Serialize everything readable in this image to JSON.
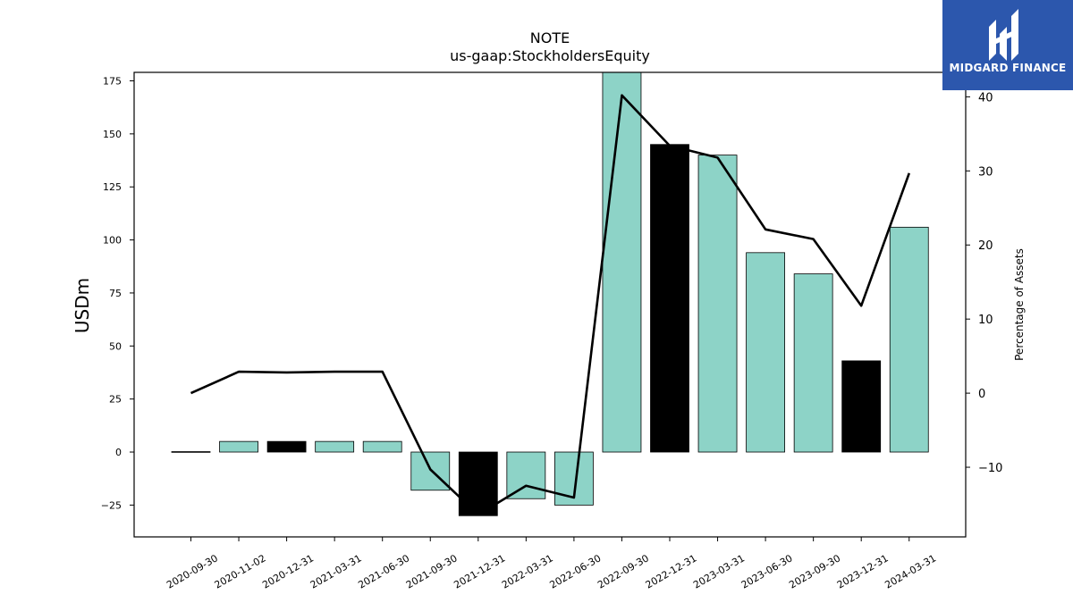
{
  "chart_data": {
    "type": "bar",
    "title": "NOTE",
    "subtitle": "us-gaap:StockholdersEquity",
    "ylabel": "USDm",
    "y2label": "Percentage of Assets",
    "ylim": [
      -40,
      179
    ],
    "y2lim": [
      -19.4,
      43.3
    ],
    "yticks": [
      -25,
      0,
      25,
      50,
      75,
      100,
      125,
      150,
      175
    ],
    "y2ticks": [
      -10,
      0,
      10,
      20,
      30,
      40
    ],
    "categories": [
      "2020-09-30",
      "2020-11-02",
      "2020-12-31",
      "2021-03-31",
      "2021-06-30",
      "2021-09-30",
      "2021-12-31",
      "2022-03-31",
      "2022-06-30",
      "2022-09-30",
      "2022-12-31",
      "2023-03-31",
      "2023-06-30",
      "2023-09-30",
      "2023-12-31",
      "2024-03-31"
    ],
    "series": [
      {
        "type": "bar",
        "values": [
          0.2,
          5,
          5,
          5,
          5,
          -18,
          -30,
          -22,
          -25,
          182,
          145,
          140,
          94,
          84,
          43,
          106
        ],
        "colors": [
          "#8dd3c7",
          "#8dd3c7",
          "#000000",
          "#8dd3c7",
          "#8dd3c7",
          "#8dd3c7",
          "#000000",
          "#8dd3c7",
          "#8dd3c7",
          "#8dd3c7",
          "#000000",
          "#8dd3c7",
          "#8dd3c7",
          "#8dd3c7",
          "#000000",
          "#8dd3c7"
        ]
      },
      {
        "type": "line",
        "axis": "right",
        "color": "#000000",
        "values": [
          0,
          2.9,
          2.8,
          2.9,
          2.9,
          -10.3,
          -16.4,
          -12.5,
          -14.1,
          40.2,
          33.4,
          31.8,
          22.1,
          20.8,
          11.8,
          29.7
        ]
      }
    ],
    "grid": false
  },
  "logo": {
    "text": "MIDGARD FINANCE",
    "color": "#2c57ad"
  }
}
